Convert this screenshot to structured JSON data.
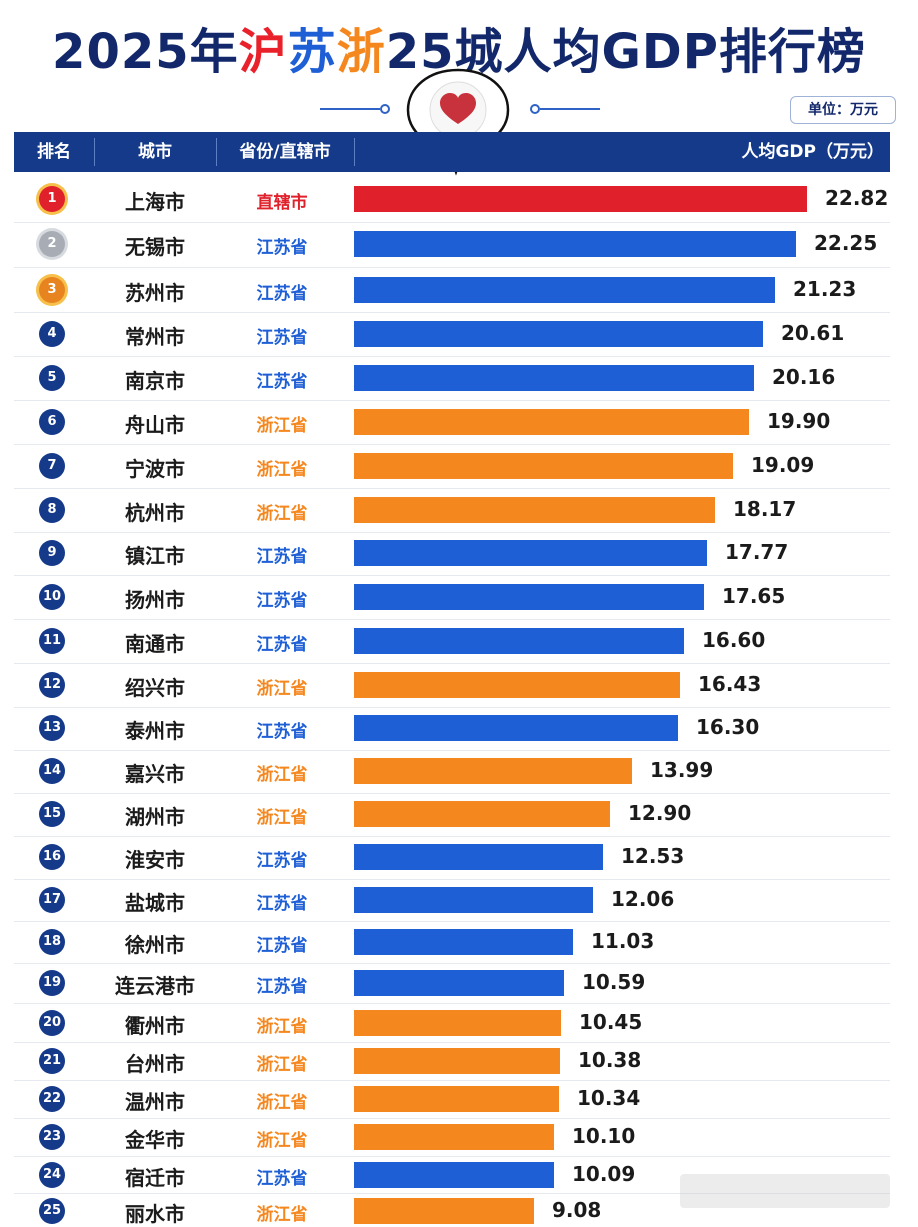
{
  "title_parts": {
    "prefix": "2025年",
    "sh": "沪",
    "js": "苏",
    "zj": "浙",
    "suffix": "25城人均GDP排行榜"
  },
  "unit_badge": "单位：万元",
  "header": {
    "rank": "排名",
    "city": "城市",
    "province": "省份/直辖市",
    "value": "人均GDP（万元）"
  },
  "colors": {
    "直辖市": "#e0202a",
    "江苏省": "#1f5fd6",
    "浙江省": "#f5871f",
    "header_bg": "#163a8a",
    "rank_badge": "#163a8a"
  },
  "chart_data": {
    "type": "bar",
    "orientation": "horizontal",
    "xlim": [
      0,
      22.82
    ],
    "categories": [
      "上海市",
      "无锡市",
      "苏州市",
      "常州市",
      "南京市",
      "舟山市",
      "宁波市",
      "杭州市",
      "镇江市",
      "扬州市",
      "南通市",
      "绍兴市",
      "泰州市",
      "嘉兴市",
      "湖州市",
      "淮安市",
      "盐城市",
      "徐州市",
      "连云港市",
      "衢州市",
      "台州市",
      "温州市",
      "金华市",
      "宿迁市",
      "丽水市"
    ],
    "rows": [
      {
        "rank": "1",
        "city": "上海市",
        "province": "直辖市",
        "value": 22.82,
        "label": "22.82"
      },
      {
        "rank": "2",
        "city": "无锡市",
        "province": "江苏省",
        "value": 22.25,
        "label": "22.25"
      },
      {
        "rank": "3",
        "city": "苏州市",
        "province": "江苏省",
        "value": 21.23,
        "label": "21.23"
      },
      {
        "rank": "4",
        "city": "常州市",
        "province": "江苏省",
        "value": 20.61,
        "label": "20.61"
      },
      {
        "rank": "5",
        "city": "南京市",
        "province": "江苏省",
        "value": 20.16,
        "label": "20.16"
      },
      {
        "rank": "6",
        "city": "舟山市",
        "province": "浙江省",
        "value": 19.9,
        "label": "19.90"
      },
      {
        "rank": "7",
        "city": "宁波市",
        "province": "浙江省",
        "value": 19.09,
        "label": "19.09"
      },
      {
        "rank": "8",
        "city": "杭州市",
        "province": "浙江省",
        "value": 18.17,
        "label": "18.17"
      },
      {
        "rank": "9",
        "city": "镇江市",
        "province": "江苏省",
        "value": 17.77,
        "label": "17.77"
      },
      {
        "rank": "10",
        "city": "扬州市",
        "province": "江苏省",
        "value": 17.65,
        "label": "17.65"
      },
      {
        "rank": "11",
        "city": "南通市",
        "province": "江苏省",
        "value": 16.6,
        "label": "16.60"
      },
      {
        "rank": "12",
        "city": "绍兴市",
        "province": "浙江省",
        "value": 16.43,
        "label": "16.43"
      },
      {
        "rank": "13",
        "city": "泰州市",
        "province": "江苏省",
        "value": 16.3,
        "label": "16.30"
      },
      {
        "rank": "14",
        "city": "嘉兴市",
        "province": "浙江省",
        "value": 13.99,
        "label": "13.99"
      },
      {
        "rank": "15",
        "city": "湖州市",
        "province": "浙江省",
        "value": 12.9,
        "label": "12.90"
      },
      {
        "rank": "16",
        "city": "淮安市",
        "province": "江苏省",
        "value": 12.53,
        "label": "12.53"
      },
      {
        "rank": "17",
        "city": "盐城市",
        "province": "江苏省",
        "value": 12.06,
        "label": "12.06"
      },
      {
        "rank": "18",
        "city": "徐州市",
        "province": "江苏省",
        "value": 11.03,
        "label": "11.03"
      },
      {
        "rank": "19",
        "city": "连云港市",
        "province": "江苏省",
        "value": 10.59,
        "label": "10.59"
      },
      {
        "rank": "20",
        "city": "衢州市",
        "province": "浙江省",
        "value": 10.45,
        "label": "10.45"
      },
      {
        "rank": "21",
        "city": "台州市",
        "province": "浙江省",
        "value": 10.38,
        "label": "10.38"
      },
      {
        "rank": "22",
        "city": "温州市",
        "province": "浙江省",
        "value": 10.34,
        "label": "10.34"
      },
      {
        "rank": "23",
        "city": "金华市",
        "province": "浙江省",
        "value": 10.1,
        "label": "10.10"
      },
      {
        "rank": "24",
        "city": "宿迁市",
        "province": "江苏省",
        "value": 10.09,
        "label": "10.09"
      },
      {
        "rank": "25",
        "city": "丽水市",
        "province": "浙江省",
        "value": 9.08,
        "label": "9.08"
      }
    ]
  }
}
